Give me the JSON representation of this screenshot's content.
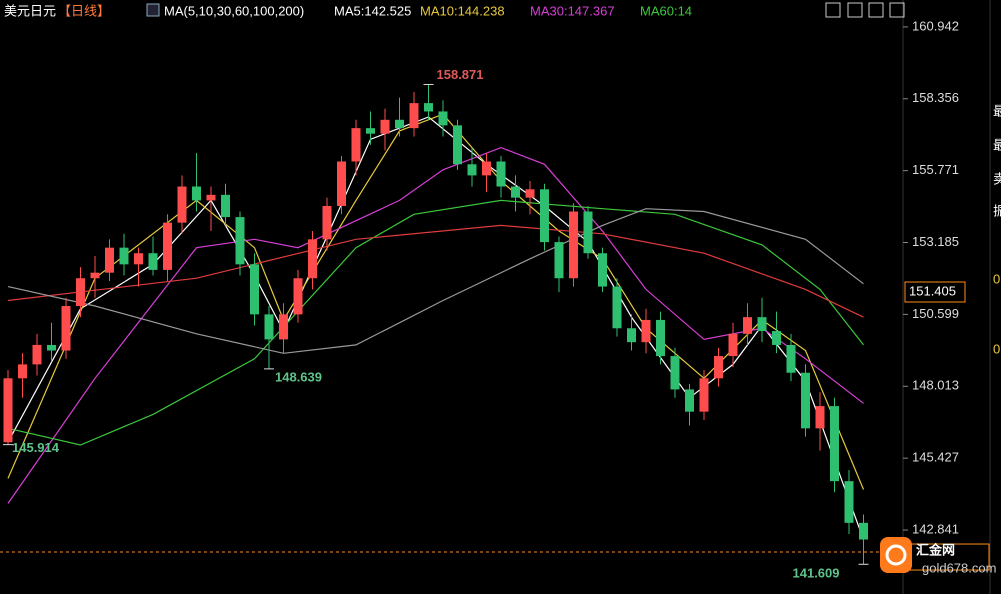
{
  "header": {
    "symbol": "美元日元",
    "period": "【日线】",
    "indicator": "MA(5,10,30,60,100,200)",
    "ma_values": [
      {
        "text": "MA5:142.525",
        "color": "#ffffff"
      },
      {
        "text": "MA10:144.238",
        "color": "#e8c93c"
      },
      {
        "text": "MA30:147.367",
        "color": "#d63fd6"
      },
      {
        "text": "MA60:14",
        "color": "#3cc83c"
      }
    ]
  },
  "chart_data": {
    "type": "candlestick",
    "open": [
      146.0,
      148.3,
      148.8,
      149.5,
      149.3,
      150.9,
      151.9,
      152.1,
      153.0,
      152.4,
      152.8,
      152.2,
      153.9,
      155.2,
      154.7,
      154.9,
      154.1,
      152.4,
      150.6,
      149.7,
      150.6,
      151.9,
      153.3,
      154.5,
      156.1,
      157.3,
      157.1,
      157.6,
      157.3,
      158.2,
      157.9,
      157.4,
      156.0,
      155.6,
      156.1,
      155.2,
      154.8,
      155.1,
      153.2,
      151.9,
      154.3,
      152.8,
      151.6,
      150.1,
      149.6,
      150.4,
      149.1,
      147.9,
      147.1,
      148.3,
      149.1,
      149.9,
      150.5,
      150.0,
      149.5,
      148.5,
      146.5,
      147.3,
      144.6,
      143.1
    ],
    "high": [
      148.6,
      149.2,
      149.9,
      150.3,
      151.2,
      152.3,
      152.7,
      153.3,
      153.5,
      153.0,
      153.4,
      154.2,
      155.6,
      156.4,
      155.2,
      155.3,
      154.3,
      152.8,
      150.9,
      151.0,
      152.2,
      153.6,
      154.8,
      156.3,
      157.6,
      157.9,
      158.0,
      158.4,
      158.6,
      158.871,
      158.3,
      157.6,
      156.6,
      156.4,
      156.3,
      155.6,
      155.4,
      155.3,
      153.4,
      154.6,
      154.5,
      153.0,
      151.9,
      150.6,
      150.8,
      150.7,
      149.4,
      148.1,
      148.6,
      149.4,
      150.3,
      151.0,
      151.2,
      150.7,
      149.9,
      148.8,
      147.8,
      147.6,
      145.0,
      143.4
    ],
    "low": [
      145.914,
      147.6,
      148.4,
      148.9,
      149.0,
      150.5,
      151.2,
      151.8,
      152.0,
      151.6,
      152.0,
      151.8,
      153.5,
      154.3,
      153.6,
      153.8,
      152.0,
      150.2,
      148.639,
      149.2,
      150.3,
      151.5,
      152.9,
      154.2,
      155.6,
      156.7,
      156.5,
      157.0,
      157.0,
      157.6,
      157.0,
      155.8,
      155.2,
      155.0,
      154.8,
      154.3,
      154.2,
      152.9,
      151.4,
      151.6,
      152.6,
      151.4,
      149.8,
      149.3,
      149.2,
      148.8,
      147.6,
      146.6,
      146.8,
      148.0,
      148.7,
      149.5,
      149.6,
      149.2,
      148.2,
      146.2,
      145.7,
      144.2,
      142.7,
      141.609
    ],
    "close": [
      148.3,
      148.8,
      149.5,
      149.3,
      150.9,
      151.9,
      152.1,
      153.0,
      152.4,
      152.8,
      152.2,
      153.9,
      155.2,
      154.7,
      154.9,
      154.1,
      152.4,
      150.6,
      149.7,
      150.6,
      151.9,
      153.3,
      154.5,
      156.1,
      157.3,
      157.1,
      157.6,
      157.3,
      158.2,
      157.9,
      157.4,
      156.0,
      155.6,
      156.1,
      155.2,
      154.8,
      155.1,
      153.2,
      151.9,
      154.3,
      152.8,
      151.6,
      150.1,
      149.6,
      150.4,
      149.1,
      147.9,
      147.1,
      148.3,
      149.1,
      149.9,
      150.5,
      150.0,
      149.5,
      148.5,
      146.5,
      147.3,
      144.6,
      143.1,
      142.5
    ],
    "up_color": "#ff4d4d",
    "down_color": "#2fbf71",
    "series": [
      {
        "color": "#ffffff",
        "x": [
          0,
          5,
          10,
          14,
          17,
          19,
          22,
          25,
          29,
          33,
          37,
          40,
          43,
          47,
          50,
          52,
          55,
          59
        ],
        "values": [
          146.0,
          150.8,
          152.4,
          154.7,
          152.0,
          150.0,
          153.4,
          156.9,
          157.7,
          156.0,
          154.5,
          153.2,
          150.5,
          147.6,
          148.8,
          150.2,
          148.2,
          142.5
        ]
      },
      {
        "color": "#e8c93c",
        "x": [
          0,
          6,
          13,
          17,
          19,
          24,
          27,
          30,
          34,
          38,
          41,
          44,
          48,
          52,
          55,
          59
        ],
        "values": [
          144.7,
          151.9,
          154.7,
          153.0,
          150.4,
          154.7,
          157.2,
          157.8,
          155.4,
          153.6,
          152.6,
          150.1,
          148.3,
          150.4,
          149.3,
          144.3
        ]
      },
      {
        "color": "#d63fd6",
        "x": [
          0,
          6,
          13,
          17,
          20,
          27,
          30,
          34,
          37,
          41,
          44,
          48,
          52,
          55,
          59
        ],
        "values": [
          143.8,
          148.3,
          153.0,
          153.3,
          153.0,
          154.7,
          155.8,
          156.6,
          156.0,
          153.6,
          151.5,
          149.7,
          150.1,
          149.0,
          147.4
        ]
      },
      {
        "color": "#3cc83c",
        "x": [
          0,
          5,
          10,
          17,
          24,
          28,
          34,
          41,
          46,
          52,
          56,
          59
        ],
        "values": [
          146.5,
          145.9,
          147.0,
          149.0,
          153.0,
          154.2,
          154.7,
          154.4,
          154.2,
          153.1,
          151.5,
          149.5
        ]
      },
      {
        "color": "#e03c3c",
        "x": [
          0,
          13,
          24,
          34,
          41,
          48,
          55,
          59
        ],
        "values": [
          151.1,
          151.9,
          153.3,
          153.8,
          153.5,
          152.8,
          151.5,
          150.5
        ]
      },
      {
        "color": "#9a9a9a",
        "x": [
          0,
          6,
          13,
          19,
          24,
          30,
          36,
          41,
          44,
          48,
          55,
          59
        ],
        "values": [
          151.6,
          150.9,
          149.9,
          149.2,
          149.5,
          151.1,
          152.6,
          153.8,
          154.4,
          154.3,
          153.3,
          151.7
        ]
      }
    ],
    "ylim": [
      140.54,
      161.91
    ],
    "yticks": [
      160.942,
      158.356,
      155.771,
      153.185,
      150.599,
      148.013,
      145.427,
      142.841
    ],
    "annotations": [
      {
        "value": 158.871,
        "x": 29,
        "color": "#e05a5a"
      },
      {
        "value": 148.639,
        "x": 18,
        "color": "#5fc48b"
      },
      {
        "value": 145.914,
        "x": 0,
        "color": "#5fc48b"
      },
      {
        "value": 141.609,
        "x": 59,
        "color": "#5fc48b"
      }
    ],
    "price_marker": 151.405,
    "price_line": 142.05
  },
  "sidebar": [
    "最",
    "最",
    "卖",
    "振",
    "0",
    "0"
  ],
  "watermark": {
    "brand": "汇金网",
    "url": "gold678.com"
  }
}
